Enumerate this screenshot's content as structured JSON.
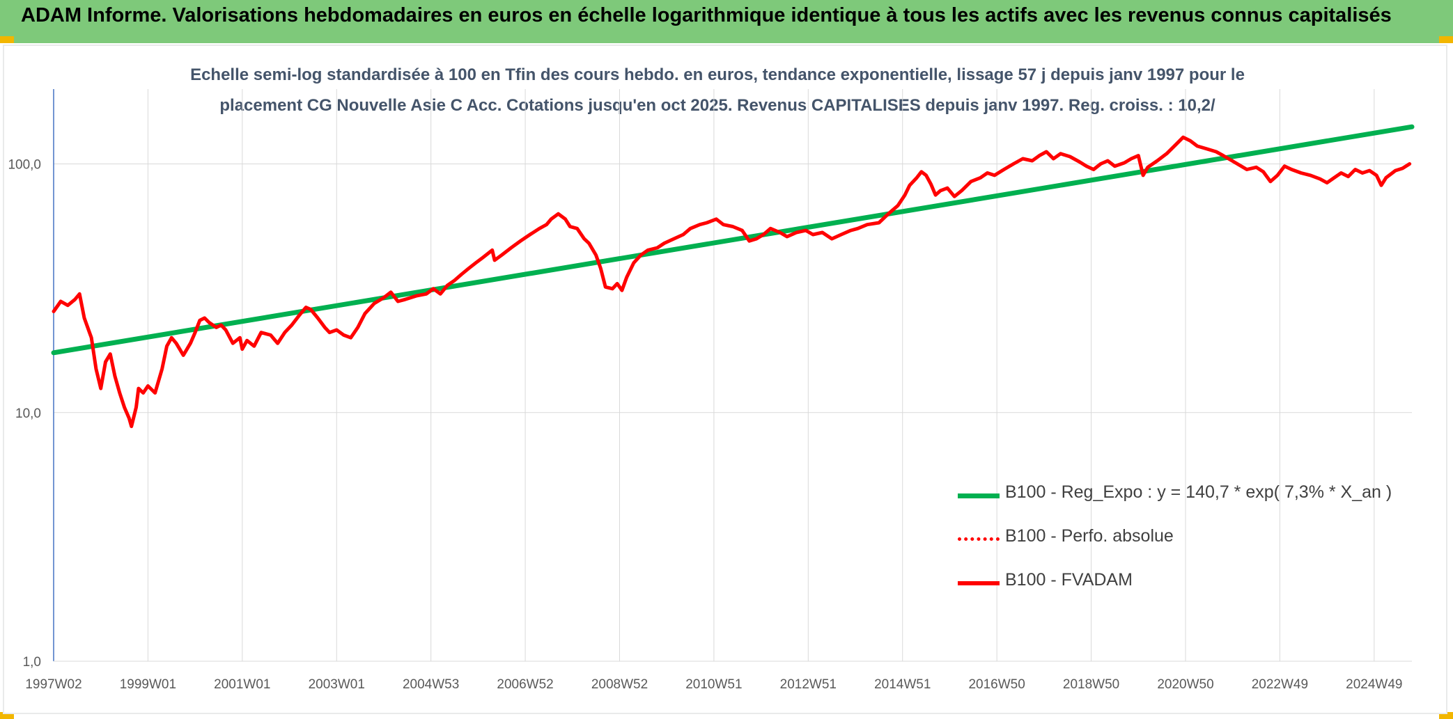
{
  "banner": {
    "title": "ADAM Informe. Valorisations hebdomadaires en euros en échelle logarithmique identique à tous les actifs avec les revenus connus capitalisés"
  },
  "chart_data": {
    "type": "line",
    "title_lines": [
      "Echelle semi-log standardisée à 100 en Tfin des cours hebdo. en euros, tendance exponentielle, lissage 57 j depuis janv 1997 pour le",
      "placement CG Nouvelle Asie C Acc. Cotations jusqu'en oct 2025. Revenus CAPITALISES depuis janv 1997. Reg. croiss. : 10,2/"
    ],
    "y_scale": "log",
    "ylim": [
      1,
      200
    ],
    "y_ticks": [
      {
        "value": 1,
        "label": "1,0"
      },
      {
        "value": 10,
        "label": "10,0"
      },
      {
        "value": 100,
        "label": "100,0"
      }
    ],
    "x_range_years": [
      1997.0,
      2025.8
    ],
    "x_ticks": [
      {
        "label": "1997W02",
        "year": 1997.0
      },
      {
        "label": "1999W01",
        "year": 1999.0
      },
      {
        "label": "2001W01",
        "year": 2001.0
      },
      {
        "label": "2003W01",
        "year": 2003.0
      },
      {
        "label": "2004W53",
        "year": 2005.0
      },
      {
        "label": "2006W52",
        "year": 2007.0
      },
      {
        "label": "2008W52",
        "year": 2009.0
      },
      {
        "label": "2010W51",
        "year": 2011.0
      },
      {
        "label": "2012W51",
        "year": 2013.0
      },
      {
        "label": "2014W51",
        "year": 2015.0
      },
      {
        "label": "2016W50",
        "year": 2017.0
      },
      {
        "label": "2018W50",
        "year": 2019.0
      },
      {
        "label": "2020W50",
        "year": 2021.0
      },
      {
        "label": "2022W49",
        "year": 2023.0
      },
      {
        "label": "2024W49",
        "year": 2025.0
      }
    ],
    "grid": true,
    "legend_position": "bottom-right",
    "series": [
      {
        "name": "B100 - Reg_Expo : y = 140,7 * exp( 7,3% *  X_an )",
        "color": "#00b050",
        "style": "solid",
        "points": [
          [
            1997.0,
            17.4
          ],
          [
            2025.8,
            141.0
          ]
        ]
      },
      {
        "name": "B100 - Perfo. absolue",
        "color": "#ff0000",
        "style": "dotted",
        "points": []
      },
      {
        "name": "B100 - FVADAM",
        "color": "#ff0000",
        "style": "solid",
        "points": [
          [
            1997.0,
            25.5
          ],
          [
            1997.15,
            28.0
          ],
          [
            1997.3,
            27.0
          ],
          [
            1997.45,
            28.5
          ],
          [
            1997.55,
            30.0
          ],
          [
            1997.65,
            24.0
          ],
          [
            1997.8,
            20.0
          ],
          [
            1997.9,
            15.0
          ],
          [
            1998.0,
            12.5
          ],
          [
            1998.1,
            16.0
          ],
          [
            1998.2,
            17.2
          ],
          [
            1998.3,
            14.0
          ],
          [
            1998.4,
            12.0
          ],
          [
            1998.5,
            10.5
          ],
          [
            1998.6,
            9.5
          ],
          [
            1998.65,
            8.8
          ],
          [
            1998.75,
            10.5
          ],
          [
            1998.8,
            12.5
          ],
          [
            1998.9,
            12.0
          ],
          [
            1999.0,
            12.8
          ],
          [
            1999.15,
            12.0
          ],
          [
            1999.3,
            15.0
          ],
          [
            1999.4,
            18.5
          ],
          [
            1999.5,
            20.0
          ],
          [
            1999.6,
            19.0
          ],
          [
            1999.75,
            17.0
          ],
          [
            1999.9,
            19.0
          ],
          [
            2000.0,
            21.0
          ],
          [
            2000.1,
            23.5
          ],
          [
            2000.2,
            24.0
          ],
          [
            2000.3,
            23.0
          ],
          [
            2000.45,
            22.0
          ],
          [
            2000.55,
            22.5
          ],
          [
            2000.65,
            21.5
          ],
          [
            2000.8,
            19.0
          ],
          [
            2000.95,
            20.0
          ],
          [
            2001.0,
            18.0
          ],
          [
            2001.1,
            19.5
          ],
          [
            2001.25,
            18.5
          ],
          [
            2001.4,
            21.0
          ],
          [
            2001.6,
            20.5
          ],
          [
            2001.75,
            19.0
          ],
          [
            2001.9,
            21.0
          ],
          [
            2002.05,
            22.5
          ],
          [
            2002.2,
            24.5
          ],
          [
            2002.35,
            26.5
          ],
          [
            2002.45,
            26.0
          ],
          [
            2002.6,
            24.0
          ],
          [
            2002.75,
            22.0
          ],
          [
            2002.85,
            21.0
          ],
          [
            2003.0,
            21.5
          ],
          [
            2003.15,
            20.5
          ],
          [
            2003.3,
            20.0
          ],
          [
            2003.45,
            22.0
          ],
          [
            2003.6,
            25.0
          ],
          [
            2003.8,
            27.5
          ],
          [
            2004.0,
            29.0
          ],
          [
            2004.15,
            30.5
          ],
          [
            2004.3,
            28.0
          ],
          [
            2004.45,
            28.5
          ],
          [
            2004.7,
            29.5
          ],
          [
            2004.9,
            30.0
          ],
          [
            2005.05,
            31.5
          ],
          [
            2005.2,
            30.0
          ],
          [
            2005.35,
            32.5
          ],
          [
            2005.5,
            34.0
          ],
          [
            2005.65,
            36.0
          ],
          [
            2005.8,
            38.0
          ],
          [
            2005.95,
            40.0
          ],
          [
            2006.1,
            42.0
          ],
          [
            2006.3,
            45.0
          ],
          [
            2006.35,
            41.0
          ],
          [
            2006.5,
            43.0
          ],
          [
            2006.7,
            46.0
          ],
          [
            2006.9,
            49.0
          ],
          [
            2007.1,
            52.0
          ],
          [
            2007.3,
            55.0
          ],
          [
            2007.45,
            57.0
          ],
          [
            2007.55,
            60.0
          ],
          [
            2007.7,
            63.0
          ],
          [
            2007.85,
            60.0
          ],
          [
            2007.95,
            56.0
          ],
          [
            2008.1,
            55.0
          ],
          [
            2008.25,
            50.0
          ],
          [
            2008.35,
            48.0
          ],
          [
            2008.5,
            43.0
          ],
          [
            2008.6,
            38.0
          ],
          [
            2008.7,
            32.0
          ],
          [
            2008.85,
            31.5
          ],
          [
            2008.95,
            33.0
          ],
          [
            2009.05,
            31.0
          ],
          [
            2009.15,
            35.0
          ],
          [
            2009.3,
            40.0
          ],
          [
            2009.45,
            43.0
          ],
          [
            2009.6,
            45.0
          ],
          [
            2009.8,
            46.0
          ],
          [
            2009.95,
            48.0
          ],
          [
            2010.15,
            50.0
          ],
          [
            2010.35,
            52.0
          ],
          [
            2010.5,
            55.0
          ],
          [
            2010.7,
            57.0
          ],
          [
            2010.85,
            58.0
          ],
          [
            2011.05,
            60.0
          ],
          [
            2011.2,
            57.0
          ],
          [
            2011.4,
            56.0
          ],
          [
            2011.6,
            54.0
          ],
          [
            2011.75,
            49.0
          ],
          [
            2011.9,
            50.0
          ],
          [
            2012.05,
            52.0
          ],
          [
            2012.2,
            55.0
          ],
          [
            2012.4,
            53.0
          ],
          [
            2012.55,
            51.0
          ],
          [
            2012.75,
            53.0
          ],
          [
            2012.95,
            54.0
          ],
          [
            2013.1,
            52.0
          ],
          [
            2013.3,
            53.0
          ],
          [
            2013.5,
            50.0
          ],
          [
            2013.7,
            52.0
          ],
          [
            2013.9,
            54.0
          ],
          [
            2014.05,
            55.0
          ],
          [
            2014.25,
            57.0
          ],
          [
            2014.5,
            58.0
          ],
          [
            2014.7,
            63.0
          ],
          [
            2014.9,
            68.0
          ],
          [
            2015.05,
            75.0
          ],
          [
            2015.15,
            82.0
          ],
          [
            2015.3,
            88.0
          ],
          [
            2015.4,
            93.0
          ],
          [
            2015.5,
            90.0
          ],
          [
            2015.6,
            83.0
          ],
          [
            2015.7,
            75.0
          ],
          [
            2015.8,
            78.0
          ],
          [
            2015.95,
            80.0
          ],
          [
            2016.1,
            74.0
          ],
          [
            2016.25,
            78.0
          ],
          [
            2016.45,
            85.0
          ],
          [
            2016.65,
            88.0
          ],
          [
            2016.8,
            92.0
          ],
          [
            2016.95,
            90.0
          ],
          [
            2017.15,
            95.0
          ],
          [
            2017.35,
            100.0
          ],
          [
            2017.55,
            105.0
          ],
          [
            2017.75,
            103.0
          ],
          [
            2017.9,
            108.0
          ],
          [
            2018.05,
            112.0
          ],
          [
            2018.2,
            105.0
          ],
          [
            2018.35,
            110.0
          ],
          [
            2018.55,
            107.0
          ],
          [
            2018.75,
            102.0
          ],
          [
            2018.9,
            98.0
          ],
          [
            2019.05,
            95.0
          ],
          [
            2019.2,
            100.0
          ],
          [
            2019.35,
            103.0
          ],
          [
            2019.5,
            98.0
          ],
          [
            2019.7,
            101.0
          ],
          [
            2019.85,
            105.0
          ],
          [
            2020.0,
            108.0
          ],
          [
            2020.1,
            90.0
          ],
          [
            2020.2,
            97.0
          ],
          [
            2020.4,
            103.0
          ],
          [
            2020.6,
            110.0
          ],
          [
            2020.8,
            120.0
          ],
          [
            2020.95,
            128.0
          ],
          [
            2021.1,
            124.0
          ],
          [
            2021.25,
            118.0
          ],
          [
            2021.45,
            115.0
          ],
          [
            2021.65,
            112.0
          ],
          [
            2021.8,
            108.0
          ],
          [
            2021.95,
            104.0
          ],
          [
            2022.1,
            100.0
          ],
          [
            2022.3,
            95.0
          ],
          [
            2022.5,
            97.0
          ],
          [
            2022.65,
            93.0
          ],
          [
            2022.8,
            85.0
          ],
          [
            2022.95,
            90.0
          ],
          [
            2023.1,
            98.0
          ],
          [
            2023.25,
            95.0
          ],
          [
            2023.45,
            92.0
          ],
          [
            2023.65,
            90.0
          ],
          [
            2023.85,
            87.0
          ],
          [
            2024.0,
            84.0
          ],
          [
            2024.15,
            88.0
          ],
          [
            2024.3,
            92.0
          ],
          [
            2024.45,
            89.0
          ],
          [
            2024.6,
            95.0
          ],
          [
            2024.75,
            92.0
          ],
          [
            2024.9,
            94.0
          ],
          [
            2025.05,
            90.0
          ],
          [
            2025.15,
            82.0
          ],
          [
            2025.25,
            88.0
          ],
          [
            2025.45,
            94.0
          ],
          [
            2025.6,
            96.0
          ],
          [
            2025.75,
            100.0
          ]
        ]
      }
    ]
  }
}
